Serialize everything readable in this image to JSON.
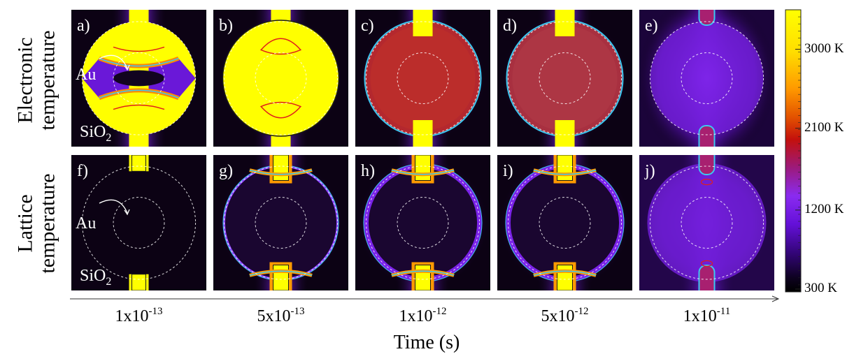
{
  "row_labels": [
    {
      "line1": "Electronic",
      "line2": "temperature"
    },
    {
      "line1": "Lattice",
      "line2": "temperature"
    }
  ],
  "panels": [
    {
      "letter": "a)",
      "phase": 1,
      "lattice": false,
      "au_label": "Au",
      "sio2_label": "SiO",
      "sio2_sub": "2"
    },
    {
      "letter": "b)",
      "phase": 2,
      "lattice": false
    },
    {
      "letter": "c)",
      "phase": 3,
      "lattice": false
    },
    {
      "letter": "d)",
      "phase": 4,
      "lattice": false
    },
    {
      "letter": "e)",
      "phase": 5,
      "lattice": false
    },
    {
      "letter": "f)",
      "phase": 1,
      "lattice": true,
      "au_label": "Au",
      "sio2_label": "SiO",
      "sio2_sub": "2"
    },
    {
      "letter": "g)",
      "phase": 2,
      "lattice": true
    },
    {
      "letter": "h)",
      "phase": 3,
      "lattice": true
    },
    {
      "letter": "i)",
      "phase": 4,
      "lattice": true
    },
    {
      "letter": "j)",
      "phase": 5,
      "lattice": true
    }
  ],
  "time_axis": {
    "title": "Time (s)",
    "ticks": [
      {
        "mantissa": "1x10",
        "exponent": "-13"
      },
      {
        "mantissa": "5x10",
        "exponent": "-13"
      },
      {
        "mantissa": "1x10",
        "exponent": "-12"
      },
      {
        "mantissa": "5x10",
        "exponent": "-12"
      },
      {
        "mantissa": "1x10",
        "exponent": "-11"
      }
    ]
  },
  "colorbar": {
    "labels": [
      "3000 K",
      "2100 K",
      "1200 K",
      "300 K"
    ],
    "label_fractions": [
      0.14,
      0.42,
      0.71,
      0.99
    ],
    "stops": [
      {
        "pos": 0.0,
        "color": "#ffff00"
      },
      {
        "pos": 0.15,
        "color": "#ffdd00"
      },
      {
        "pos": 0.28,
        "color": "#ff9900"
      },
      {
        "pos": 0.38,
        "color": "#e35200"
      },
      {
        "pos": 0.46,
        "color": "#c4100c"
      },
      {
        "pos": 0.56,
        "color": "#9c1a7c"
      },
      {
        "pos": 0.66,
        "color": "#8a2bf0"
      },
      {
        "pos": 0.76,
        "color": "#6410d8"
      },
      {
        "pos": 0.86,
        "color": "#34057a"
      },
      {
        "pos": 0.95,
        "color": "#0e0220"
      },
      {
        "pos": 1.0,
        "color": "#000000"
      }
    ]
  },
  "colors": {
    "hot": "#ffff00",
    "orange": "#ff8a00",
    "red_contour": "#e0201a",
    "cyan_contour": "#3cc8f0",
    "purple": "#7a22e8",
    "dark": "#0c0214"
  }
}
